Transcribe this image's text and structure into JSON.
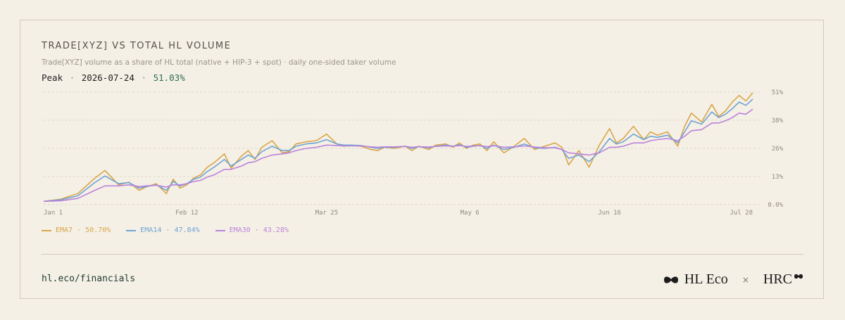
{
  "header": {
    "title": "TRADE[XYZ] VS TOTAL HL VOLUME",
    "subtitle": "Trade[XYZ] volume as a share of HL total (native + HIP-3 + spot) · daily one-sided taker volume",
    "peak_label": "Peak",
    "peak_sep": "·",
    "peak_date": "2026-07-24",
    "peak_value": "51.03%"
  },
  "footer": {
    "url": "hl.eco/financials",
    "brand_left": "HL Eco",
    "times": "×",
    "brand_right": "HRC"
  },
  "colors": {
    "ema7": "#d9a548",
    "ema14": "#6ea3d4",
    "ema30": "#bb82dc",
    "grid": "#ddd6c8"
  },
  "chart_data": {
    "type": "line",
    "x_start": "Jan 1",
    "x_ticks": [
      "Jan 1",
      "Feb 12",
      "Mar 25",
      "May 6",
      "Jun 16",
      "Jul 28"
    ],
    "x_tick_days": [
      0,
      42,
      83,
      125,
      166,
      208
    ],
    "y_ticks": [
      "0.0%",
      "13%",
      "26%",
      "38%",
      "51%"
    ],
    "y_tick_values": [
      0,
      12.8,
      25.5,
      38.3,
      51.0
    ],
    "ylim": [
      0,
      51.0
    ],
    "xlim": [
      0,
      208
    ],
    "grid": true,
    "legend": "bottom-left",
    "series": [
      {
        "name": "EMA7",
        "legend_value": "50.70%",
        "days": [
          0,
          5,
          10,
          15,
          18,
          22,
          25,
          28,
          30,
          33,
          36,
          38,
          40,
          42,
          44,
          46,
          48,
          50,
          53,
          55,
          58,
          60,
          62,
          64,
          67,
          70,
          72,
          74,
          77,
          80,
          83,
          86,
          88,
          90,
          93,
          96,
          98,
          100,
          103,
          106,
          108,
          110,
          113,
          115,
          118,
          120,
          122,
          124,
          126,
          128,
          130,
          132,
          135,
          138,
          141,
          144,
          147,
          150,
          152,
          154,
          157,
          160,
          163,
          166,
          168,
          170,
          173,
          176,
          178,
          180,
          183,
          186,
          188,
          190,
          193,
          196,
          198,
          200,
          202,
          204,
          206,
          208
        ],
        "values": [
          1.5,
          2.5,
          5.0,
          12.0,
          15.5,
          9.0,
          10.2,
          6.5,
          8.0,
          9.5,
          5.0,
          11.5,
          7.5,
          9.0,
          12.0,
          13.5,
          17.0,
          19.0,
          23.0,
          16.5,
          22.0,
          24.5,
          20.5,
          26.0,
          29.0,
          23.5,
          24.0,
          27.5,
          28.5,
          29.0,
          32.0,
          27.5,
          26.5,
          27.0,
          26.5,
          25.0,
          24.5,
          26.0,
          25.5,
          26.5,
          24.5,
          26.5,
          25.0,
          27.0,
          27.5,
          26.0,
          28.0,
          25.5,
          27.0,
          27.5,
          24.5,
          28.5,
          23.5,
          26.5,
          30.0,
          25.0,
          26.5,
          28.0,
          26.0,
          18.0,
          24.5,
          17.0,
          27.0,
          34.5,
          28.0,
          30.0,
          35.5,
          29.5,
          33.0,
          31.5,
          33.0,
          26.5,
          35.5,
          41.5,
          37.5,
          45.5,
          40.0,
          42.5,
          46.5,
          49.5,
          47.0,
          50.7
        ]
      },
      {
        "name": "EMA14",
        "legend_value": "47.84%",
        "days": [
          0,
          5,
          10,
          15,
          18,
          22,
          25,
          28,
          30,
          33,
          36,
          38,
          40,
          42,
          44,
          46,
          48,
          50,
          53,
          55,
          58,
          60,
          62,
          64,
          67,
          70,
          72,
          74,
          77,
          80,
          83,
          86,
          88,
          90,
          93,
          96,
          98,
          100,
          103,
          106,
          108,
          110,
          113,
          115,
          118,
          120,
          122,
          124,
          126,
          128,
          130,
          132,
          135,
          138,
          141,
          144,
          147,
          150,
          152,
          154,
          157,
          160,
          163,
          166,
          168,
          170,
          173,
          176,
          178,
          180,
          183,
          186,
          188,
          190,
          193,
          196,
          198,
          200,
          202,
          204,
          206,
          208
        ],
        "values": [
          1.5,
          2.2,
          4.0,
          10.0,
          13.0,
          9.5,
          10.0,
          7.5,
          8.2,
          9.0,
          6.5,
          10.5,
          8.5,
          9.5,
          11.5,
          12.5,
          15.0,
          17.0,
          20.5,
          17.5,
          20.5,
          22.5,
          21.0,
          24.0,
          26.5,
          24.5,
          24.5,
          26.5,
          27.5,
          28.0,
          29.5,
          27.5,
          27.0,
          27.0,
          26.8,
          26.0,
          25.5,
          26.0,
          26.0,
          26.5,
          25.5,
          26.3,
          25.8,
          26.5,
          27.0,
          26.5,
          27.2,
          26.0,
          26.5,
          26.8,
          25.5,
          27.0,
          25.0,
          26.0,
          27.5,
          25.8,
          25.5,
          26.0,
          25.0,
          21.0,
          22.5,
          19.5,
          24.0,
          30.0,
          27.5,
          28.5,
          32.0,
          29.5,
          31.0,
          30.5,
          31.5,
          28.0,
          33.0,
          38.0,
          36.5,
          42.0,
          39.5,
          41.0,
          43.5,
          46.5,
          45.0,
          47.84
        ]
      },
      {
        "name": "EMA30",
        "legend_value": "43.28%",
        "days": [
          0,
          5,
          10,
          15,
          18,
          22,
          25,
          28,
          30,
          33,
          36,
          38,
          40,
          42,
          44,
          46,
          48,
          50,
          53,
          55,
          58,
          60,
          62,
          64,
          67,
          70,
          72,
          74,
          77,
          80,
          83,
          86,
          88,
          90,
          93,
          96,
          98,
          100,
          103,
          106,
          108,
          110,
          113,
          115,
          118,
          120,
          122,
          124,
          126,
          128,
          130,
          132,
          135,
          138,
          141,
          144,
          147,
          150,
          152,
          154,
          157,
          160,
          163,
          166,
          168,
          170,
          173,
          176,
          178,
          180,
          183,
          186,
          188,
          190,
          193,
          196,
          198,
          200,
          202,
          204,
          206,
          208
        ],
        "values": [
          1.5,
          1.8,
          2.8,
          6.5,
          8.5,
          8.5,
          9.0,
          8.2,
          8.5,
          8.8,
          8.0,
          9.0,
          9.0,
          9.5,
          10.5,
          11.0,
          12.5,
          13.5,
          16.0,
          16.0,
          17.5,
          19.0,
          19.5,
          21.0,
          22.5,
          23.0,
          23.5,
          24.5,
          25.5,
          26.0,
          27.0,
          26.8,
          26.6,
          26.6,
          26.6,
          26.2,
          26.0,
          26.2,
          26.2,
          26.4,
          26.0,
          26.3,
          26.1,
          26.4,
          26.6,
          26.5,
          26.8,
          26.4,
          26.6,
          26.7,
          26.3,
          26.7,
          26.0,
          26.2,
          26.6,
          26.1,
          25.8,
          25.8,
          25.0,
          23.5,
          23.0,
          22.5,
          23.5,
          26.0,
          26.0,
          26.5,
          28.0,
          28.0,
          29.0,
          29.5,
          30.0,
          29.0,
          31.0,
          33.5,
          34.0,
          37.0,
          37.0,
          38.0,
          39.5,
          41.5,
          41.0,
          43.28
        ]
      }
    ]
  }
}
